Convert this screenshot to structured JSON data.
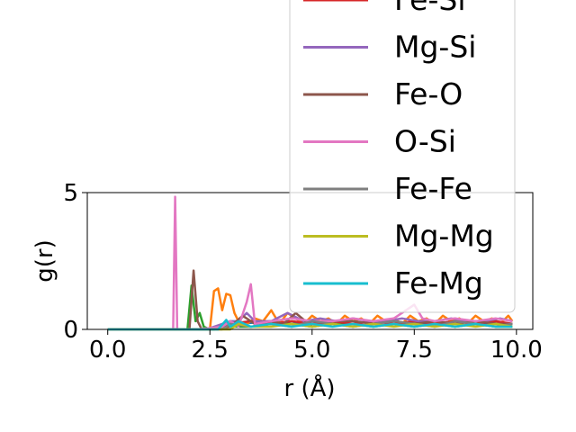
{
  "chart_data": {
    "type": "line",
    "title": "",
    "xlabel": "r (Å)",
    "ylabel": "g(r)",
    "xlim": [
      -0.5,
      10.4
    ],
    "ylim": [
      0,
      5
    ],
    "xticks": [
      0.0,
      2.5,
      5.0,
      7.5,
      10.0
    ],
    "xtick_labels": [
      "0.0",
      "2.5",
      "5.0",
      "7.5",
      "10.0"
    ],
    "yticks": [
      0,
      5
    ],
    "ytick_labels": [
      "0",
      "5"
    ],
    "grid": false,
    "legend_placement": "upper-right (extends above the plot)",
    "legend_visible": [
      "Fe-Si",
      "Mg-Si",
      "Fe-O",
      "O-Si",
      "Fe-Fe",
      "Mg-Mg",
      "Fe-Mg"
    ],
    "series": [
      {
        "color": "#1f77b4",
        "x": [
          0.0,
          2.6,
          2.8,
          3.0,
          3.2,
          3.6,
          4.0,
          4.5,
          5.0,
          5.5,
          6.0,
          6.5,
          7.0,
          7.5,
          8.0,
          8.5,
          9.0,
          9.5,
          9.9
        ],
        "y": [
          0.0,
          0.0,
          0.15,
          0.3,
          0.2,
          0.25,
          0.3,
          0.2,
          0.3,
          0.25,
          0.2,
          0.3,
          0.2,
          0.25,
          0.2,
          0.3,
          0.2,
          0.25,
          0.2
        ]
      },
      {
        "color": "#ff7f0e",
        "x": [
          0.0,
          2.5,
          2.6,
          2.7,
          2.8,
          2.9,
          3.0,
          3.1,
          3.2,
          3.4,
          3.6,
          3.8,
          4.0,
          4.2,
          4.4,
          4.6,
          4.8,
          5.0,
          5.2,
          5.4,
          5.6,
          5.8,
          6.0,
          6.2,
          6.4,
          6.6,
          6.8,
          7.0,
          7.2,
          7.4,
          7.6,
          7.8,
          8.0,
          8.2,
          8.4,
          8.6,
          8.8,
          9.0,
          9.2,
          9.4,
          9.6,
          9.8,
          9.9
        ],
        "y": [
          0.0,
          0.0,
          1.4,
          1.5,
          0.7,
          1.3,
          1.25,
          0.6,
          0.3,
          0.2,
          0.4,
          0.3,
          0.7,
          0.2,
          0.6,
          0.4,
          0.2,
          0.5,
          0.3,
          0.4,
          0.2,
          0.5,
          0.3,
          0.4,
          0.2,
          0.5,
          0.3,
          0.4,
          0.2,
          0.5,
          0.3,
          0.4,
          0.2,
          0.5,
          0.3,
          0.4,
          0.2,
          0.5,
          0.3,
          0.4,
          0.2,
          0.5,
          0.3
        ]
      },
      {
        "color": "#2ca02c",
        "x": [
          0.0,
          1.95,
          2.05,
          2.15,
          2.25,
          2.35,
          2.5,
          3.0,
          3.5,
          4.0,
          4.5,
          5.0,
          5.5,
          6.0,
          6.5,
          7.0,
          7.5,
          8.0,
          8.5,
          9.0,
          9.5,
          9.9
        ],
        "y": [
          0.0,
          0.0,
          1.6,
          0.3,
          0.6,
          0.1,
          0.0,
          0.1,
          0.1,
          0.2,
          0.2,
          0.1,
          0.2,
          0.2,
          0.1,
          0.2,
          0.1,
          0.2,
          0.1,
          0.2,
          0.1,
          0.1
        ]
      },
      {
        "color": "#d62728",
        "x": [
          0.0,
          2.5,
          3.0,
          3.5,
          4.0,
          4.5,
          5.0,
          5.5,
          6.0,
          6.5,
          7.0,
          7.5,
          8.0,
          8.5,
          9.0,
          9.5,
          9.9
        ],
        "y": [
          0.0,
          0.0,
          0.2,
          0.3,
          0.2,
          0.3,
          0.2,
          0.3,
          0.2,
          0.3,
          0.2,
          0.3,
          0.2,
          0.3,
          0.2,
          0.3,
          0.2
        ]
      },
      {
        "color": "#9467bd",
        "x": [
          0.0,
          2.4,
          2.6,
          2.8,
          3.0,
          3.2,
          3.4,
          3.6,
          3.8,
          4.0,
          4.4,
          4.8,
          5.2,
          5.6,
          6.0,
          6.4,
          6.8,
          7.2,
          7.6,
          8.0,
          8.4,
          8.8,
          9.2,
          9.6,
          9.9
        ],
        "y": [
          0.0,
          0.0,
          0.1,
          0.2,
          0.3,
          0.3,
          0.6,
          0.3,
          0.3,
          0.3,
          0.6,
          0.3,
          0.4,
          0.3,
          0.4,
          0.3,
          0.3,
          0.4,
          0.3,
          0.3,
          0.4,
          0.3,
          0.3,
          0.4,
          0.3
        ]
      },
      {
        "color": "#8c564b",
        "x": [
          0.0,
          2.0,
          2.1,
          2.2,
          2.3,
          2.6,
          3.0,
          3.3,
          3.6,
          4.0,
          4.3,
          4.6,
          5.0,
          5.5,
          6.0,
          6.5,
          7.0,
          7.5,
          8.0,
          8.5,
          9.0,
          9.5,
          9.9
        ],
        "y": [
          0.0,
          0.0,
          2.15,
          0.3,
          0.0,
          0.0,
          0.1,
          0.5,
          0.2,
          0.3,
          0.2,
          0.6,
          0.1,
          0.3,
          0.3,
          0.2,
          0.3,
          0.2,
          0.3,
          0.2,
          0.3,
          0.2,
          0.2
        ]
      },
      {
        "color": "#e377c2",
        "x": [
          0.0,
          1.5,
          1.6,
          1.65,
          1.7,
          1.8,
          2.2,
          2.8,
          3.0,
          3.2,
          3.4,
          3.5,
          3.6,
          4.0,
          4.5,
          5.0,
          5.5,
          6.0,
          6.5,
          7.0,
          7.5,
          7.7,
          8.0,
          8.5,
          9.0,
          9.5,
          9.9
        ],
        "y": [
          0.0,
          0.0,
          0.0,
          4.85,
          0.0,
          0.0,
          0.0,
          0.1,
          0.3,
          0.1,
          1.0,
          1.65,
          0.2,
          0.3,
          0.4,
          0.3,
          0.3,
          0.4,
          0.3,
          0.4,
          0.9,
          0.4,
          0.3,
          0.4,
          0.3,
          0.4,
          0.3
        ]
      },
      {
        "color": "#7f7f7f",
        "x": [
          0.0,
          2.8,
          3.0,
          3.5,
          4.0,
          4.5,
          5.0,
          5.5,
          6.0,
          6.5,
          7.0,
          7.5,
          8.0,
          8.5,
          9.0,
          9.5,
          9.9
        ],
        "y": [
          0.0,
          0.0,
          0.2,
          0.1,
          0.2,
          0.1,
          0.3,
          0.2,
          0.1,
          0.2,
          0.3,
          0.2,
          0.1,
          0.3,
          0.2,
          0.1,
          0.2
        ]
      },
      {
        "color": "#bcbd22",
        "x": [
          0.0,
          3.0,
          3.2,
          3.5,
          4.0,
          4.5,
          5.0,
          5.5,
          6.0,
          6.5,
          7.0,
          7.5,
          8.0,
          8.5,
          9.0,
          9.5,
          9.9
        ],
        "y": [
          0.0,
          0.0,
          0.2,
          0.1,
          0.1,
          0.2,
          0.1,
          0.2,
          0.1,
          0.2,
          0.1,
          0.2,
          0.1,
          0.2,
          0.1,
          0.2,
          0.1
        ]
      },
      {
        "color": "#17becf",
        "x": [
          0.0,
          2.7,
          2.9,
          3.0,
          3.2,
          3.5,
          4.0,
          4.5,
          5.0,
          5.5,
          6.0,
          6.5,
          7.0,
          7.5,
          8.0,
          8.5,
          9.0,
          9.5,
          9.9
        ],
        "y": [
          0.0,
          0.0,
          0.35,
          0.1,
          0.3,
          0.1,
          0.2,
          0.1,
          0.2,
          0.1,
          0.2,
          0.1,
          0.2,
          0.1,
          0.2,
          0.1,
          0.2,
          0.1,
          0.1
        ]
      }
    ],
    "legend": [
      {
        "label": "Fe-Si",
        "color": "#d62728"
      },
      {
        "label": "Mg-Si",
        "color": "#9467bd"
      },
      {
        "label": "Fe-O",
        "color": "#8c564b"
      },
      {
        "label": "O-Si",
        "color": "#e377c2"
      },
      {
        "label": "Fe-Fe",
        "color": "#7f7f7f"
      },
      {
        "label": "Mg-Mg",
        "color": "#bcbd22"
      },
      {
        "label": "Fe-Mg",
        "color": "#17becf"
      }
    ]
  }
}
